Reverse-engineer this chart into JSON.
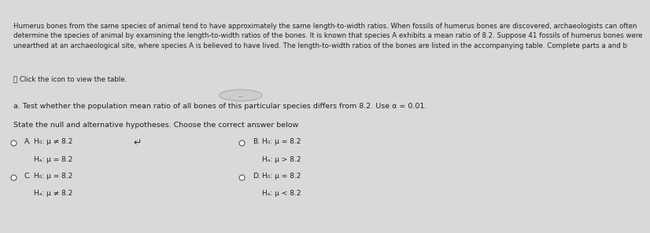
{
  "bg_color": "#d9d9d9",
  "top_box_color": "#ffffff",
  "bottom_box_color": "#e8e8e8",
  "top_text": "Humerus bones from the same species of animal tend to have approximately the same length-to-width ratios. When fossils of humerus bones are discovered, archaeologists can often\ndetermine the species of animal by examining the length-to-width ratios of the bones. It is known that species A exhibits a mean ratio of 8.2. Suppose 41 fossils of humerus bones were\nunearthed at an archaeological site, where species A is believed to have lived. The length-to-width ratios of the bones are listed in the accompanying table. Complete parts a and b",
  "icon_text": "⋮⋮ Click the icon to view the table.",
  "section_a_text": "a. Test whether the population mean ratio of all bones of this particular species differs from 8.2. Use α = 0.01.",
  "state_text": "State the null and alternative hypotheses. Choose the correct answer below",
  "option_A_label": "A.",
  "option_A_h0": "H₀: μ ≠ 8.2",
  "option_A_ha": "Hₐ: μ = 8.2",
  "option_B_label": "B.",
  "option_B_h0": "H₀: μ = 8.2",
  "option_B_ha": "Hₐ: μ > 8.2",
  "option_C_label": "C.",
  "option_C_h0": "H₀: μ = 8.2",
  "option_C_ha": "Hₐ: μ ≠ 8.2",
  "option_D_label": "D.",
  "option_D_h0": "H₀: μ = 8.2",
  "option_D_ha": "Hₐ: μ < 8.2",
  "text_color": "#222222",
  "light_text_color": "#555555",
  "font_size_top": 6.2,
  "font_size_body": 6.8,
  "font_size_options": 6.5
}
